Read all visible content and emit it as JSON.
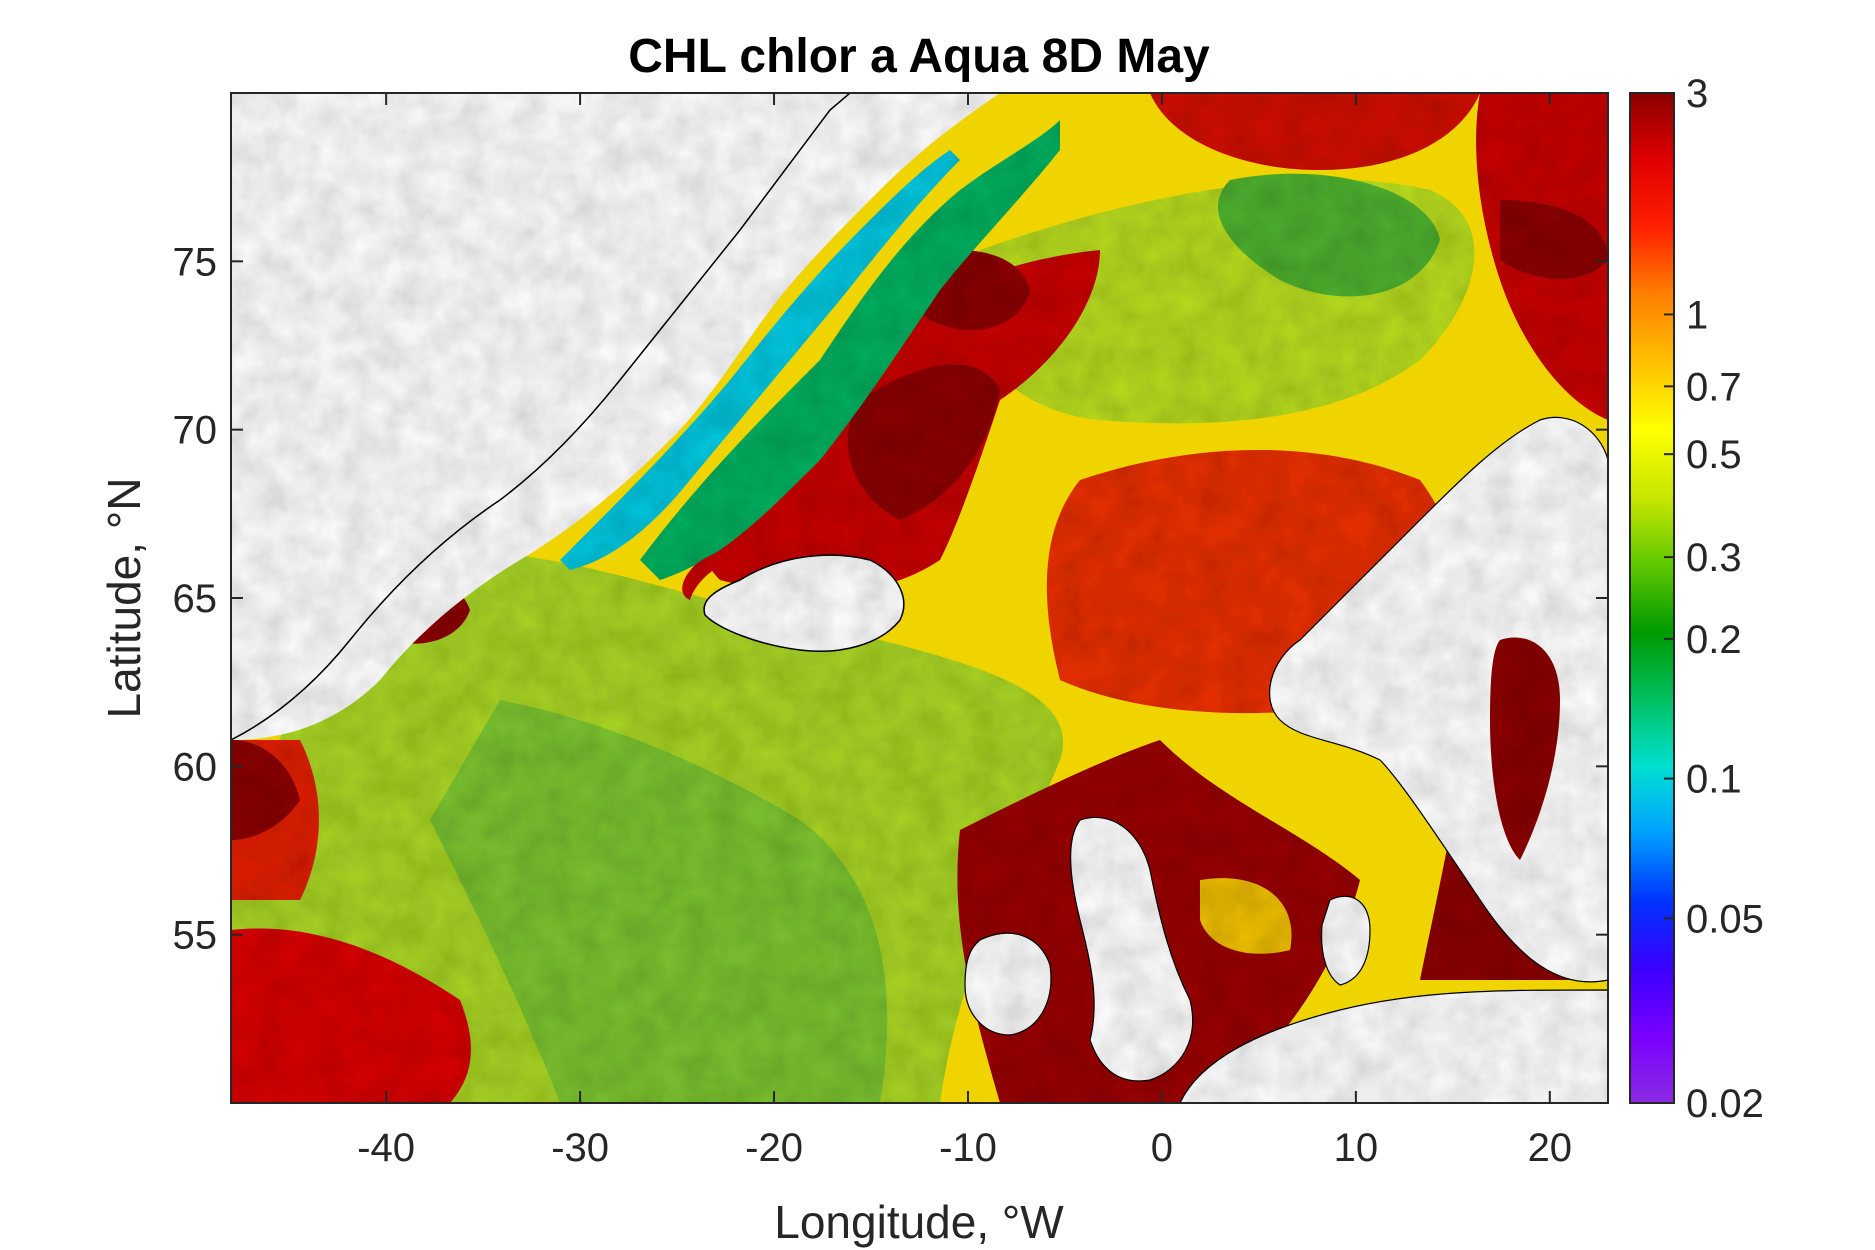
{
  "chart_data": {
    "type": "heatmap",
    "title": "CHL chlor a Aqua 8D May",
    "xlabel": "Longitude, °W",
    "ylabel": "Latitude, °N",
    "xlim": [
      -48,
      23
    ],
    "ylim": [
      50,
      80
    ],
    "x_ticks": [
      -40,
      -30,
      -20,
      -10,
      0,
      10,
      20
    ],
    "x_tick_labels": [
      "-40",
      "-30",
      "-20",
      "-10",
      "0",
      "10",
      "20"
    ],
    "y_ticks": [
      55,
      60,
      65,
      70,
      75
    ],
    "y_tick_labels": [
      "55",
      "60",
      "65",
      "70",
      "75"
    ],
    "colorbar": {
      "scale": "log",
      "range": [
        0.02,
        3
      ],
      "ticks": [
        0.02,
        0.05,
        0.1,
        0.2,
        0.3,
        0.5,
        0.7,
        1,
        3
      ],
      "tick_labels": [
        "0.02",
        "0.05",
        "0.1",
        "0.2",
        "0.3",
        "0.5",
        "0.7",
        "1",
        "3"
      ],
      "colors": [
        "#8a2be2",
        "#7a00ff",
        "#3a00ff",
        "#0033ff",
        "#00a0ff",
        "#00e0d0",
        "#00c060",
        "#009a00",
        "#60c800",
        "#c8e600",
        "#ffff00",
        "#ffc000",
        "#ff8000",
        "#ff2000",
        "#e00000",
        "#8b0000"
      ]
    },
    "grid": false,
    "legend": "colorbar-right"
  },
  "colors": {
    "land": "#ffffff",
    "coast": "#000000",
    "high_chl": "#a00000",
    "mid_chl": "#e8e000",
    "low_chl": "#90c830",
    "ice_edge": "#00c8e0"
  }
}
